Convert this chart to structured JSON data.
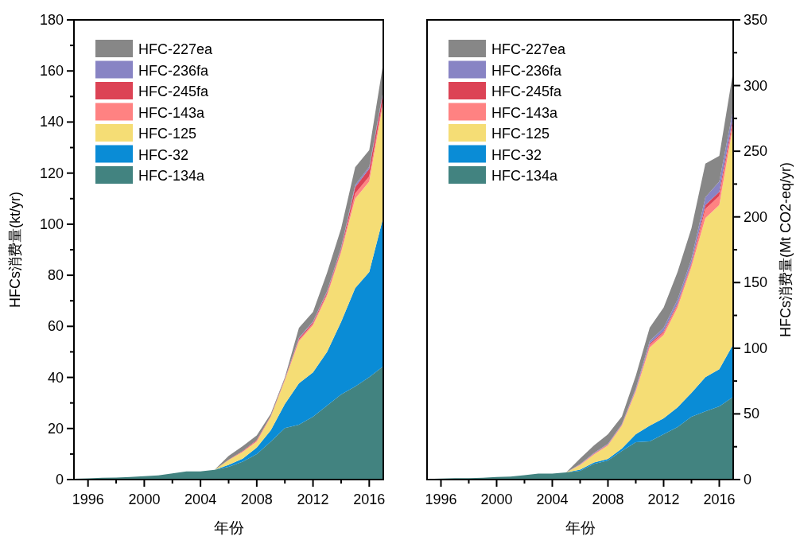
{
  "chart_data": [
    {
      "type": "area",
      "stacked": true,
      "legend": "top left",
      "xlabel": "年份",
      "ylabel": "HFCs消费量(kt/yr)",
      "x": [
        1995,
        1996,
        1997,
        1998,
        1999,
        2000,
        2001,
        2002,
        2003,
        2004,
        2005,
        2006,
        2007,
        2008,
        2009,
        2010,
        2011,
        2012,
        2013,
        2014,
        2015,
        2016,
        2017
      ],
      "xlim": [
        1995,
        2017
      ],
      "xticks": [
        1996,
        {
          "value": 1998,
          "label": null
        },
        2000,
        {
          "value": 2002,
          "label": null
        },
        2004,
        {
          "value": 2006,
          "label": null
        },
        2008,
        {
          "value": 2010,
          "label": null
        },
        2012,
        {
          "value": 2014,
          "label": null
        },
        2016
      ],
      "ylim": [
        0,
        180
      ],
      "yticks": [
        0,
        {
          "value": 10,
          "label": null
        },
        20,
        {
          "value": 30,
          "label": null
        },
        40,
        {
          "value": 50,
          "label": null
        },
        60,
        {
          "value": 70,
          "label": null
        },
        80,
        {
          "value": 90,
          "label": null
        },
        100,
        {
          "value": 110,
          "label": null
        },
        120,
        {
          "value": 130,
          "label": null
        },
        140,
        {
          "value": 150,
          "label": null
        },
        160,
        {
          "value": 170,
          "label": null
        },
        180
      ],
      "series": [
        {
          "name": "HFC-134a",
          "color": "#428380",
          "values": [
            0.3,
            0.5,
            0.7,
            0.8,
            1.0,
            1.3,
            1.6,
            2.4,
            3.2,
            3.2,
            3.8,
            5,
            7,
            10,
            14.9,
            20.2,
            21.5,
            24.6,
            29,
            33.3,
            36.4,
            40.1,
            44.4
          ]
        },
        {
          "name": "HFC-32",
          "color": "#0a8cd6",
          "values": [
            0,
            0,
            0,
            0,
            0,
            0,
            0,
            0,
            0,
            0,
            0,
            0.8,
            1.2,
            2.5,
            4.4,
            9.4,
            16.2,
            17.4,
            21,
            28.4,
            38.6,
            41.2,
            58.4
          ]
        },
        {
          "name": "HFC-125",
          "color": "#f5dd75",
          "values": [
            0,
            0,
            0,
            0,
            0,
            0,
            0,
            0,
            0,
            0,
            0,
            1.8,
            2.6,
            2.4,
            5.3,
            9.3,
            16.5,
            18.4,
            22,
            27.3,
            35,
            35.4,
            45
          ]
        },
        {
          "name": "HFC-143a",
          "color": "#ff8282",
          "values": [
            0,
            0,
            0,
            0,
            0,
            0,
            0,
            0,
            0,
            0,
            0,
            0.1,
            0.2,
            0.3,
            0.2,
            0.3,
            0.5,
            0.6,
            0.7,
            0.8,
            2,
            2,
            1.5
          ]
        },
        {
          "name": "HFC-245fa",
          "color": "#dc4355",
          "values": [
            0,
            0,
            0,
            0,
            0,
            0,
            0,
            0,
            0,
            0,
            0,
            0.1,
            0.2,
            0.3,
            0.2,
            0.3,
            0.6,
            0.6,
            0.7,
            0.7,
            2.5,
            3,
            2.5
          ]
        },
        {
          "name": "HFC-236fa",
          "color": "#8884c4",
          "values": [
            0,
            0,
            0,
            0,
            0,
            0,
            0,
            0,
            0,
            0,
            0,
            0,
            0,
            0,
            0,
            0,
            0.3,
            0.3,
            0.4,
            0.4,
            0.9,
            0.8,
            0.7
          ]
        },
        {
          "name": "HFC-227ea",
          "color": "#878787",
          "values": [
            0,
            0,
            0,
            0,
            0,
            0,
            0,
            0,
            0,
            0,
            0,
            1.5,
            1.9,
            1.8,
            0.8,
            0.5,
            3.8,
            3.7,
            7.2,
            7.4,
            6.9,
            6.5,
            10.7
          ]
        }
      ]
    },
    {
      "type": "area",
      "stacked": true,
      "legend": "top left",
      "xlabel": "年份",
      "y2label": "HFCs消费量(Mt CO2-eq/yr)",
      "x": [
        1995,
        1996,
        1997,
        1998,
        1999,
        2000,
        2001,
        2002,
        2003,
        2004,
        2005,
        2006,
        2007,
        2008,
        2009,
        2010,
        2011,
        2012,
        2013,
        2014,
        2015,
        2016,
        2017
      ],
      "xlim": [
        1995,
        2017
      ],
      "xticks": [
        1996,
        {
          "value": 1998,
          "label": null
        },
        2000,
        {
          "value": 2002,
          "label": null
        },
        2004,
        {
          "value": 2006,
          "label": null
        },
        2008,
        {
          "value": 2010,
          "label": null
        },
        2012,
        {
          "value": 2014,
          "label": null
        },
        2016
      ],
      "y2lim": [
        0,
        350
      ],
      "y2ticks": [
        0,
        {
          "value": 25,
          "label": null
        },
        50,
        {
          "value": 75,
          "label": null
        },
        100,
        {
          "value": 125,
          "label": null
        },
        150,
        {
          "value": 175,
          "label": null
        },
        200,
        {
          "value": 225,
          "label": null
        },
        250,
        {
          "value": 275,
          "label": null
        },
        300,
        {
          "value": 325,
          "label": null
        },
        350
      ],
      "series": [
        {
          "name": "HFC-134a",
          "color": "#428380",
          "axis": "y2",
          "values": [
            0.4,
            0.7,
            1,
            1.1,
            1.4,
            1.9,
            2.3,
            3.4,
            4.6,
            4.6,
            5.4,
            6.7,
            12,
            14.5,
            21.8,
            28.5,
            29,
            34.5,
            40,
            47.8,
            52,
            55.7,
            63
          ]
        },
        {
          "name": "HFC-32",
          "color": "#0a8cd6",
          "axis": "y2",
          "values": [
            0,
            0,
            0,
            0,
            0,
            0,
            0,
            0,
            0,
            0,
            0,
            0.8,
            1,
            1.2,
            1.8,
            6,
            12,
            12.1,
            15,
            18.2,
            26,
            28.3,
            40
          ]
        },
        {
          "name": "HFC-125",
          "color": "#f5dd75",
          "axis": "y2",
          "values": [
            0,
            0,
            0,
            0,
            0,
            0,
            0,
            0,
            0,
            0,
            0,
            3.5,
            6,
            10.3,
            17.4,
            32.5,
            59.5,
            63.4,
            76,
            96,
            121,
            125,
            167
          ]
        },
        {
          "name": "HFC-143a",
          "color": "#ff8282",
          "axis": "y2",
          "values": [
            0,
            0,
            0,
            0,
            0,
            0,
            0,
            0,
            0,
            0,
            0,
            0.3,
            0.5,
            0.5,
            0.5,
            1,
            2,
            2,
            2,
            2,
            7,
            7,
            3
          ]
        },
        {
          "name": "HFC-245fa",
          "color": "#dc4355",
          "axis": "y2",
          "values": [
            0,
            0,
            0,
            0,
            0,
            0,
            0,
            0,
            0,
            0,
            0,
            0.2,
            0.3,
            0.3,
            0.3,
            0.5,
            1,
            1,
            1,
            1,
            3,
            3,
            3
          ]
        },
        {
          "name": "HFC-236fa",
          "color": "#8884c4",
          "axis": "y2",
          "values": [
            0,
            0,
            0,
            0,
            0,
            0,
            0,
            0,
            0,
            0,
            0,
            0.3,
            0.5,
            0.5,
            0.5,
            1,
            2,
            2.5,
            3,
            3,
            6,
            8,
            6
          ]
        },
        {
          "name": "HFC-227ea",
          "color": "#878787",
          "axis": "y2",
          "values": [
            0,
            0,
            0,
            0,
            0,
            0,
            0,
            0,
            0,
            0,
            0,
            4.2,
            5.7,
            7.2,
            5.7,
            9.5,
            10.2,
            15.5,
            21,
            23.4,
            25.5,
            19.5,
            29
          ]
        }
      ]
    }
  ]
}
